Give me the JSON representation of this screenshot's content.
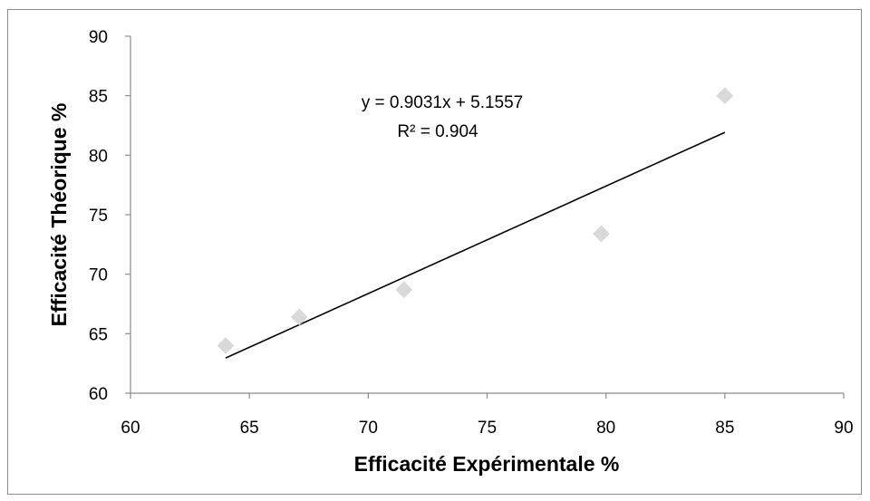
{
  "chart_data": {
    "type": "scatter",
    "title": "",
    "xlabel": "Efficacité Expérimentale %",
    "ylabel": "Efficacité Théorique %",
    "xlim": [
      60,
      90
    ],
    "ylim": [
      60,
      90
    ],
    "xticks": [
      60,
      65,
      70,
      75,
      80,
      85,
      90
    ],
    "yticks": [
      60,
      65,
      70,
      75,
      80,
      85,
      90
    ],
    "xtick_labels": [
      "60",
      "65",
      "70",
      "75",
      "80",
      "85",
      "90"
    ],
    "ytick_labels": [
      "60",
      "65",
      "70",
      "75",
      "80",
      "85",
      "90"
    ],
    "grid": false,
    "legend": "none",
    "series": [
      {
        "marker": "diamond",
        "color": "#d9d9d9",
        "points": [
          {
            "x": 64.0,
            "y": 64.0
          },
          {
            "x": 67.1,
            "y": 66.4
          },
          {
            "x": 71.5,
            "y": 68.7
          },
          {
            "x": 79.8,
            "y": 73.4
          },
          {
            "x": 85.0,
            "y": 85.0
          }
        ]
      }
    ],
    "trendline": {
      "type": "linear",
      "slope": 0.9031,
      "intercept": 5.1557,
      "x_start": 64.0,
      "x_end": 85.0,
      "color": "#000000",
      "equation_text": "y = 0.9031x + 5.1557",
      "r2_text": "R² = 0.904"
    }
  }
}
